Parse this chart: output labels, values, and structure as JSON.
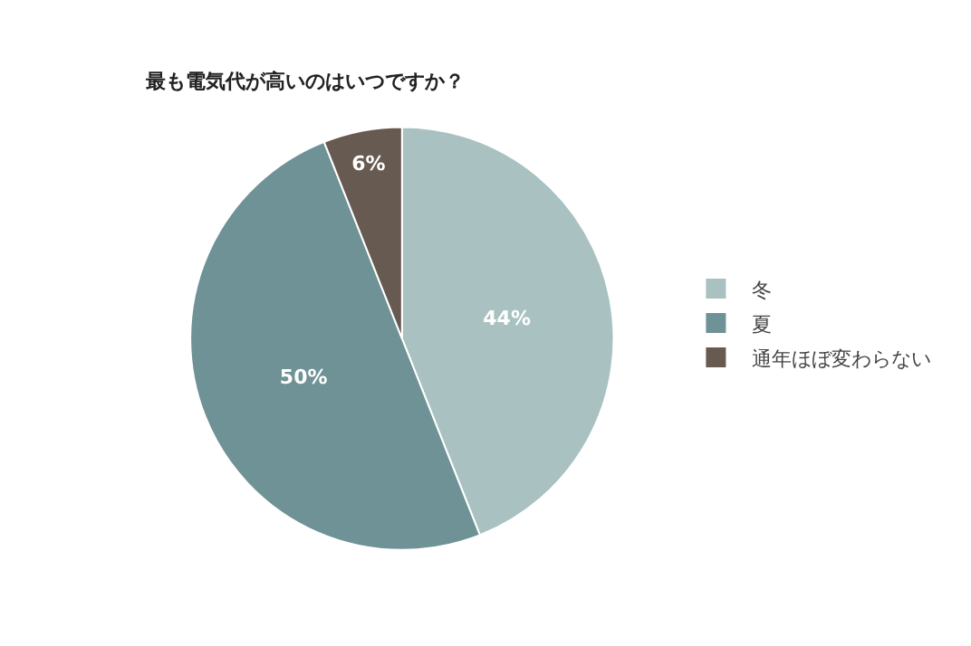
{
  "chart_data": {
    "type": "pie",
    "title": "最も電気代が高いのはいつですか？",
    "categories": [
      "冬",
      "夏",
      "通年ほぼ変わらない"
    ],
    "values": [
      44,
      50,
      6
    ],
    "colors": [
      "#a9c1c1",
      "#6e9295",
      "#675a50"
    ],
    "value_labels": [
      "44%",
      "50%",
      "6%"
    ],
    "legend": "right"
  }
}
